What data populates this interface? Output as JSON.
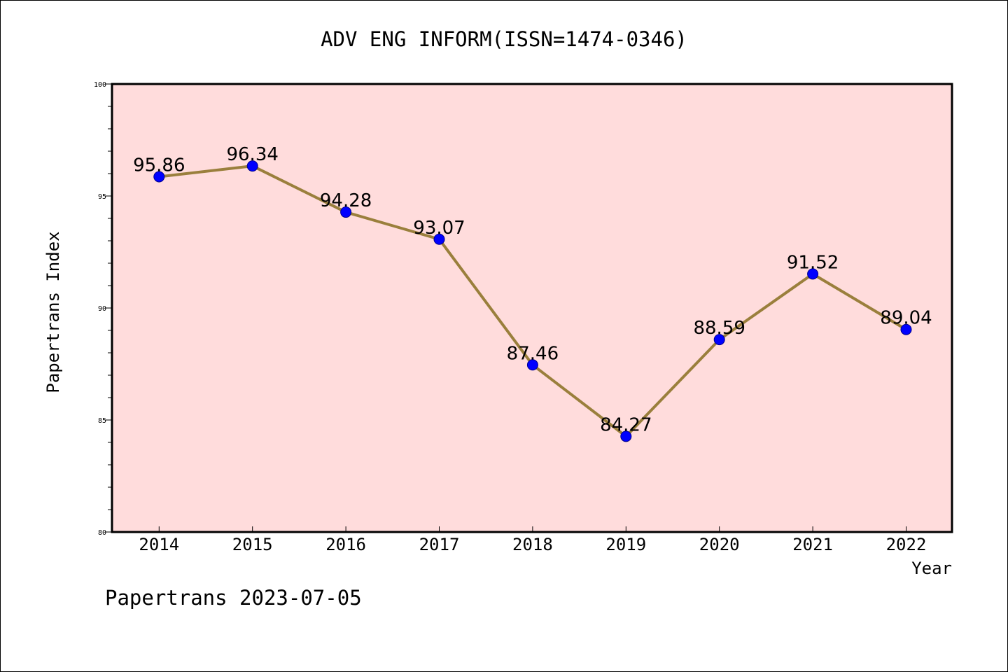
{
  "chart_data": {
    "type": "line",
    "title": "ADV ENG INFORM(ISSN=1474-0346)",
    "xlabel": "Year",
    "ylabel": "Papertrans Index",
    "x": [
      "2014",
      "2015",
      "2016",
      "2017",
      "2018",
      "2019",
      "2020",
      "2021",
      "2022"
    ],
    "series": [
      {
        "values": [
          95.86,
          96.34,
          94.28,
          93.07,
          87.46,
          84.27,
          88.59,
          91.52,
          89.04
        ],
        "labels": [
          "95.86",
          "96.34",
          "94.28",
          "93.07",
          "87.46",
          "84.27",
          "88.59",
          "91.52",
          "89.04"
        ]
      }
    ],
    "ylim": [
      80,
      100
    ],
    "yticks": [
      "80",
      "85",
      "90",
      "95",
      "100"
    ],
    "grid": false,
    "legend": "none",
    "colors": {
      "plot_background": "#FFDCDC",
      "line": "#9A7F3C",
      "marker": "#0000FF"
    }
  },
  "footer": {
    "text": "Papertrans 2023-07-05"
  }
}
